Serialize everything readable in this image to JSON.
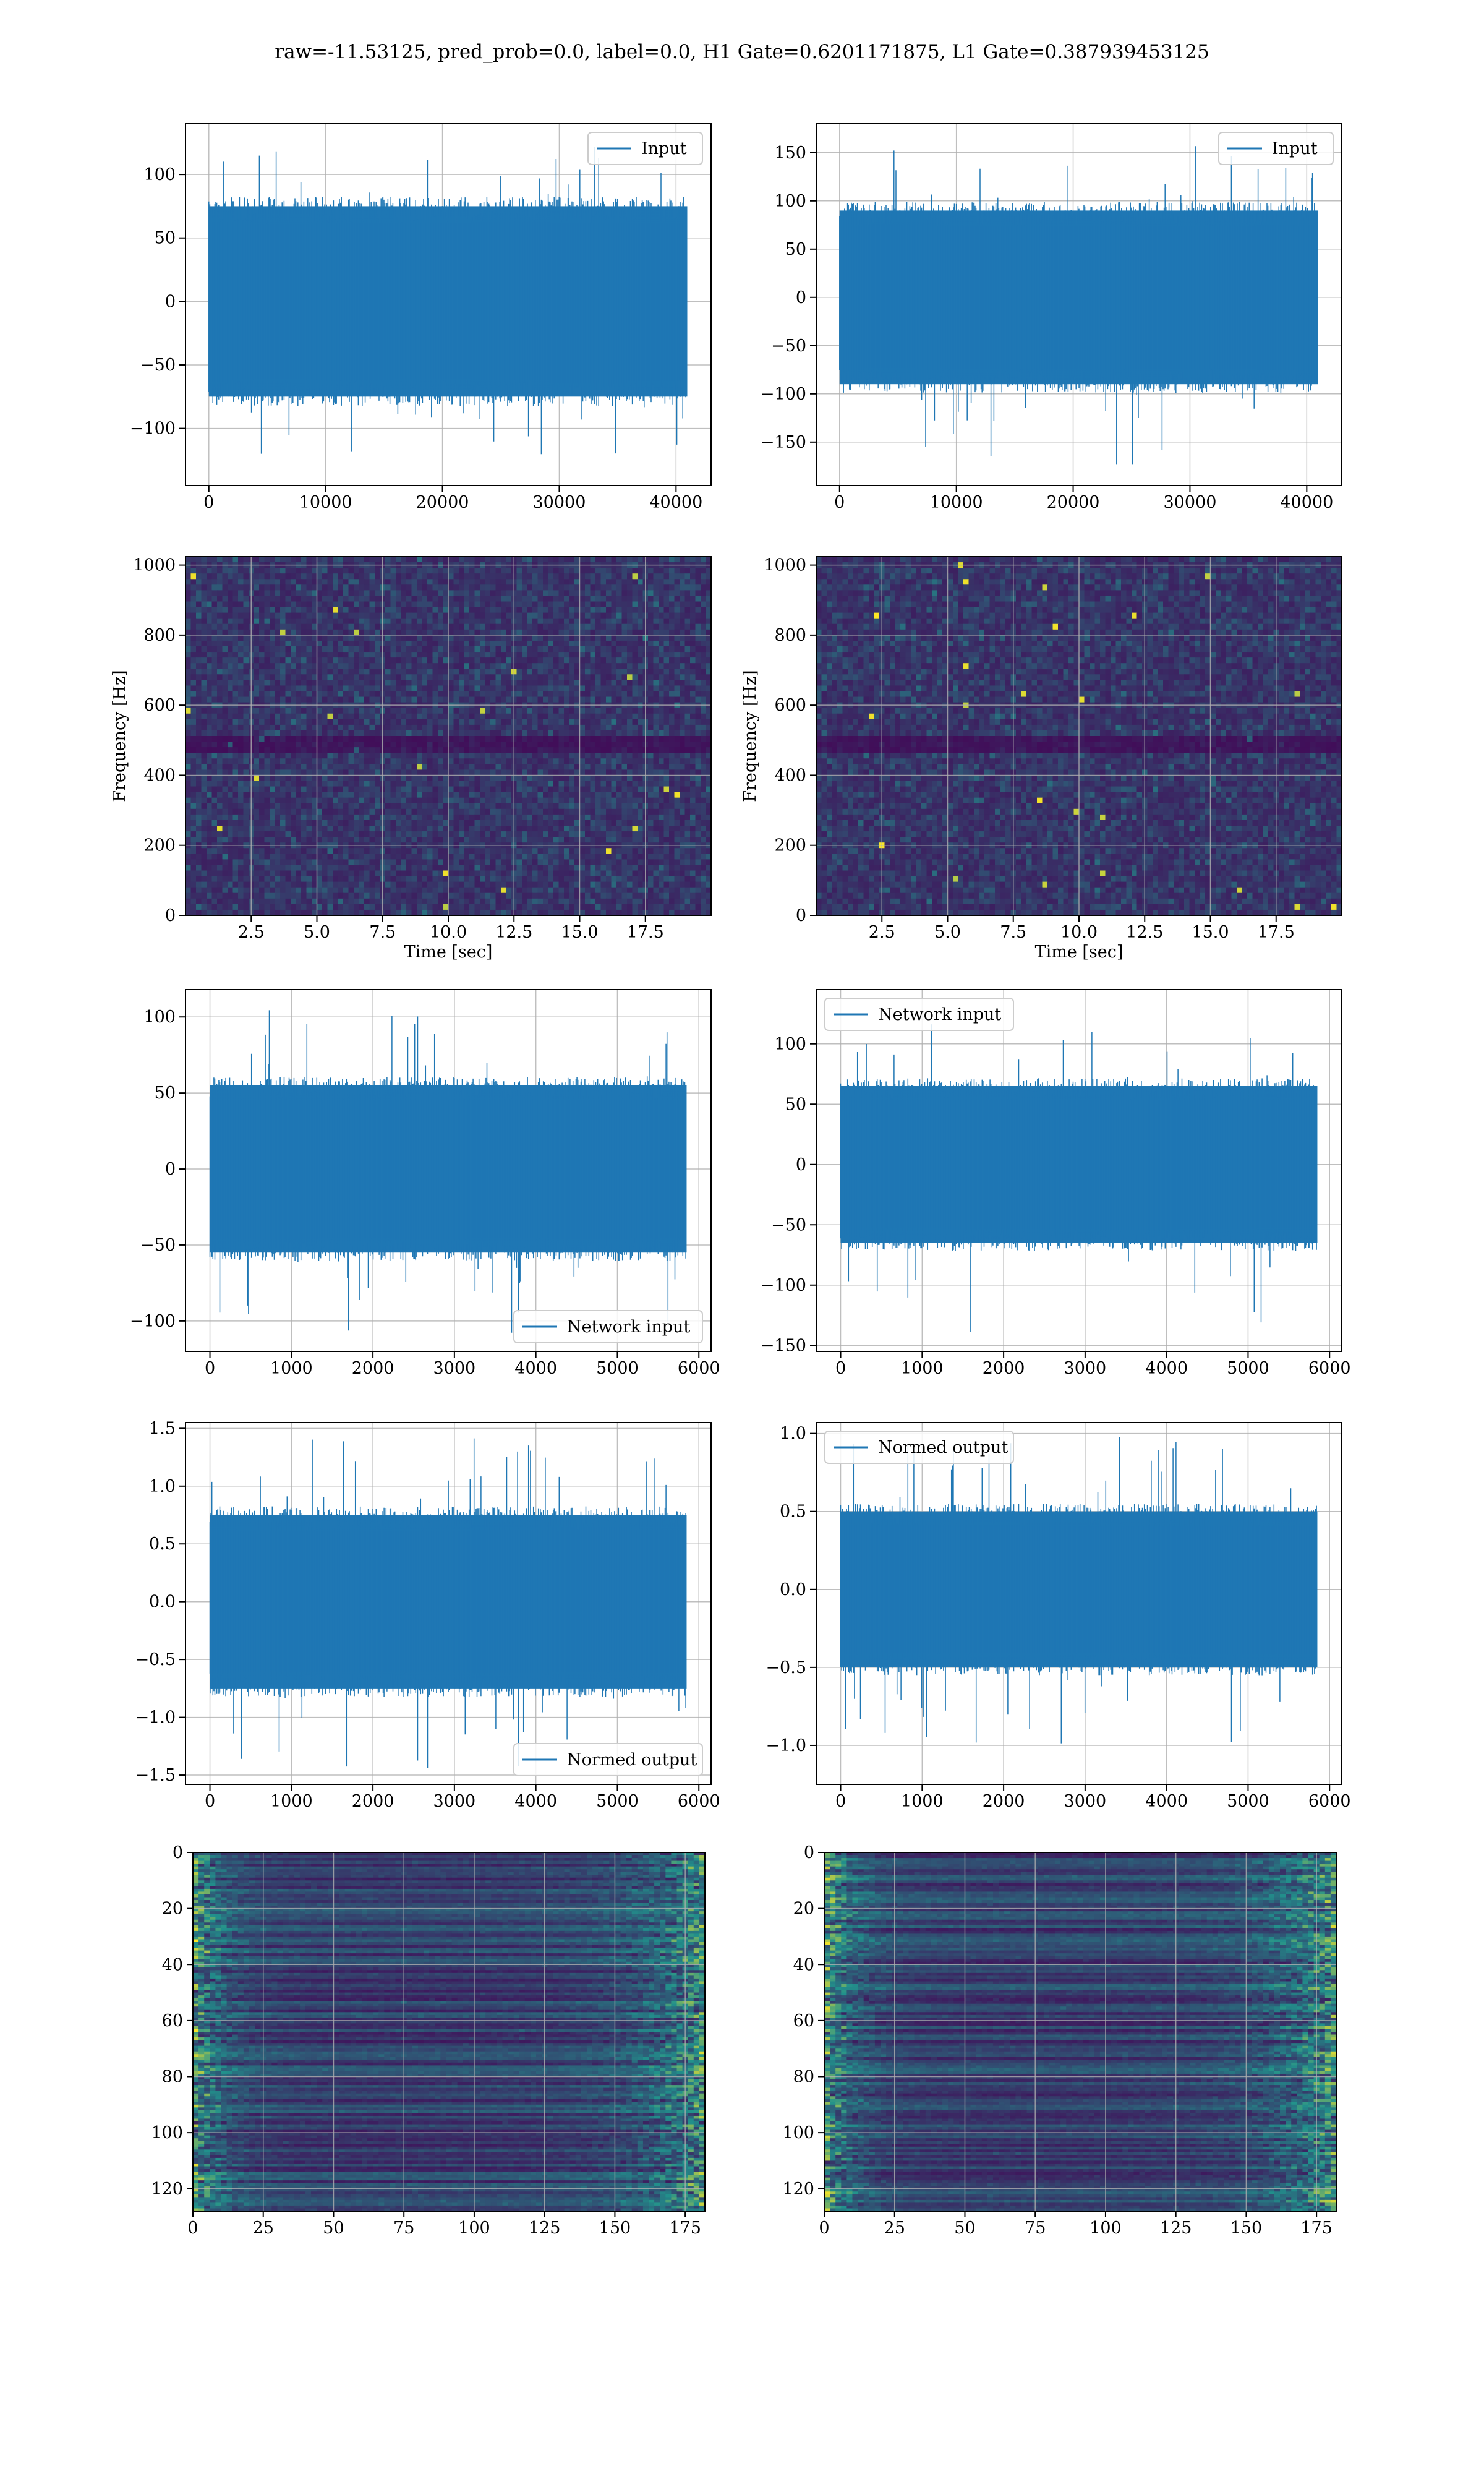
{
  "figure": {
    "title": "raw=-11.53125, pred_prob=0.0, label=0.0, H1 Gate=0.6201171875, L1 Gate=0.387939453125"
  },
  "colors": {
    "signal": "#1f77b4",
    "grid": "#b0b0b0",
    "viridis_dark": "#440154",
    "viridis_mid": "#21918c",
    "viridis_bright": "#fde725"
  },
  "chart_data": [
    {
      "id": "h1-input",
      "type": "line",
      "series": [
        {
          "name": "Input",
          "x_range": [
            0,
            40960
          ],
          "envelope": [
            -75,
            75
          ],
          "peak_range": [
            -130,
            125
          ]
        }
      ],
      "legend": "top-right",
      "xticks": [
        0,
        10000,
        20000,
        30000,
        40000
      ],
      "yticks": [
        -100,
        -50,
        0,
        50,
        100
      ],
      "xlim": [
        -2000,
        43000
      ],
      "ylim": [
        -145,
        140
      ],
      "grid": true
    },
    {
      "id": "l1-input",
      "type": "line",
      "series": [
        {
          "name": "Input",
          "x_range": [
            0,
            40960
          ],
          "envelope": [
            -90,
            90
          ],
          "peak_range": [
            -178,
            165
          ]
        }
      ],
      "legend": "top-right",
      "xticks": [
        0,
        10000,
        20000,
        30000,
        40000
      ],
      "yticks": [
        -150,
        -100,
        -50,
        0,
        50,
        100,
        150
      ],
      "xlim": [
        -2000,
        43000
      ],
      "ylim": [
        -195,
        180
      ],
      "grid": true
    },
    {
      "id": "h1-spectrogram",
      "type": "heatmap",
      "xlabel": "Time [sec]",
      "ylabel": "Frequency [Hz]",
      "xticks": [
        "2.5",
        "5.0",
        "7.5",
        "10.0",
        "12.5",
        "15.0",
        "17.5"
      ],
      "yticks": [
        0,
        200,
        400,
        600,
        800,
        1000
      ],
      "xlim": [
        0,
        20
      ],
      "ylim": [
        0,
        1024
      ],
      "grid": true
    },
    {
      "id": "l1-spectrogram",
      "type": "heatmap",
      "xlabel": "Time [sec]",
      "ylabel": "Frequency [Hz]",
      "xticks": [
        "2.5",
        "5.0",
        "7.5",
        "10.0",
        "12.5",
        "15.0",
        "17.5"
      ],
      "yticks": [
        0,
        200,
        400,
        600,
        800,
        1000
      ],
      "xlim": [
        0,
        20
      ],
      "ylim": [
        0,
        1024
      ],
      "grid": true
    },
    {
      "id": "h1-network-input",
      "type": "line",
      "series": [
        {
          "name": "Network input",
          "x_range": [
            0,
            5850
          ],
          "envelope": [
            -55,
            55
          ],
          "peak_range": [
            -110,
            107
          ]
        }
      ],
      "legend": "bottom-right",
      "xticks": [
        0,
        1000,
        2000,
        3000,
        4000,
        5000,
        6000
      ],
      "yticks": [
        -100,
        -50,
        0,
        50,
        100
      ],
      "xlim": [
        -300,
        6150
      ],
      "ylim": [
        -120,
        118
      ],
      "grid": true
    },
    {
      "id": "l1-network-input",
      "type": "line",
      "series": [
        {
          "name": "Network input",
          "x_range": [
            0,
            5850
          ],
          "envelope": [
            -65,
            65
          ],
          "peak_range": [
            -140,
            118
          ]
        }
      ],
      "legend": "top-left",
      "xticks": [
        0,
        1000,
        2000,
        3000,
        4000,
        5000,
        6000
      ],
      "yticks": [
        -150,
        -100,
        -50,
        0,
        50,
        100
      ],
      "xlim": [
        -300,
        6150
      ],
      "ylim": [
        -155,
        145
      ],
      "grid": true
    },
    {
      "id": "h1-normed-output",
      "type": "line",
      "series": [
        {
          "name": "Normed output",
          "x_range": [
            0,
            5850
          ],
          "envelope": [
            -0.75,
            0.75
          ],
          "peak_range": [
            -1.45,
            1.42
          ]
        }
      ],
      "legend": "bottom-right",
      "xticks": [
        0,
        1000,
        2000,
        3000,
        4000,
        5000,
        6000
      ],
      "yticks": [
        "-1.5",
        "-1.0",
        "-0.5",
        "0.0",
        "0.5",
        "1.0",
        "1.5"
      ],
      "xlim": [
        -300,
        6150
      ],
      "ylim": [
        -1.58,
        1.55
      ],
      "grid": true
    },
    {
      "id": "l1-normed-output",
      "type": "line",
      "series": [
        {
          "name": "Normed output",
          "x_range": [
            0,
            5850
          ],
          "envelope": [
            -0.5,
            0.5
          ],
          "peak_range": [
            -1.07,
            0.98
          ]
        }
      ],
      "legend": "top-left",
      "xticks": [
        0,
        1000,
        2000,
        3000,
        4000,
        5000,
        6000
      ],
      "yticks": [
        "-1.0",
        "-0.5",
        "0.0",
        "0.5",
        "1.0"
      ],
      "xlim": [
        -300,
        6150
      ],
      "ylim": [
        -1.25,
        1.07
      ],
      "grid": true
    },
    {
      "id": "h1-feature-map",
      "type": "heatmap",
      "xticks": [
        0,
        25,
        50,
        75,
        100,
        125,
        150,
        175
      ],
      "yticks": [
        0,
        20,
        40,
        60,
        80,
        100,
        120
      ],
      "xlim": [
        0,
        182
      ],
      "ylim": [
        128,
        0
      ],
      "grid": true
    },
    {
      "id": "l1-feature-map",
      "type": "heatmap",
      "xticks": [
        0,
        25,
        50,
        75,
        100,
        125,
        150,
        175
      ],
      "yticks": [
        0,
        20,
        40,
        60,
        80,
        100,
        120
      ],
      "xlim": [
        0,
        182
      ],
      "ylim": [
        128,
        0
      ],
      "grid": true
    }
  ]
}
